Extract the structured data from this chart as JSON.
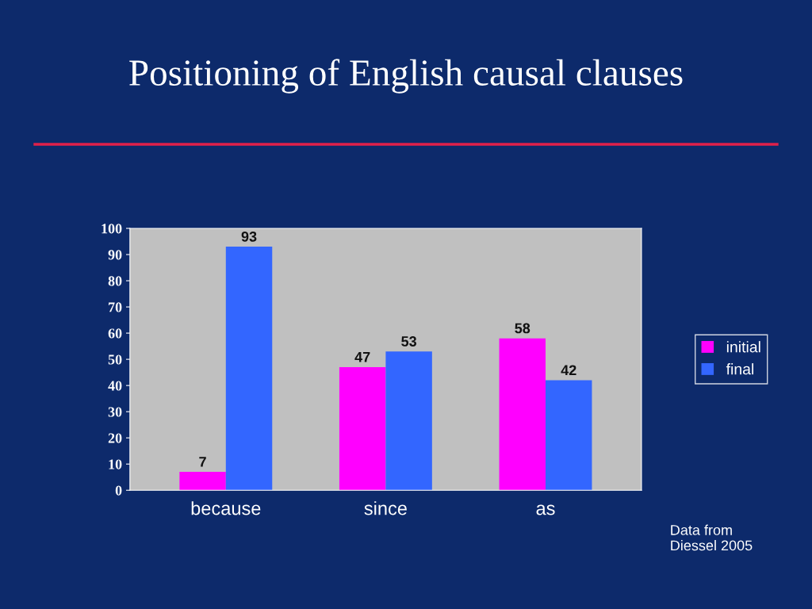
{
  "chart_data": {
    "type": "bar",
    "title": "Positioning of English causal clauses",
    "categories": [
      "because",
      "since",
      "as"
    ],
    "series": [
      {
        "name": "initial",
        "color": "#ff00ff",
        "values": [
          7,
          47,
          58
        ]
      },
      {
        "name": "final",
        "color": "#3366ff",
        "values": [
          93,
          53,
          42
        ]
      }
    ],
    "ylim": [
      0,
      100
    ],
    "yticks": [
      0,
      10,
      20,
      30,
      40,
      50,
      60,
      70,
      80,
      90,
      100
    ],
    "data_labels": true,
    "legend": "right",
    "grid": false,
    "annotations": [
      "Data from\nDiessel 2005"
    ]
  }
}
